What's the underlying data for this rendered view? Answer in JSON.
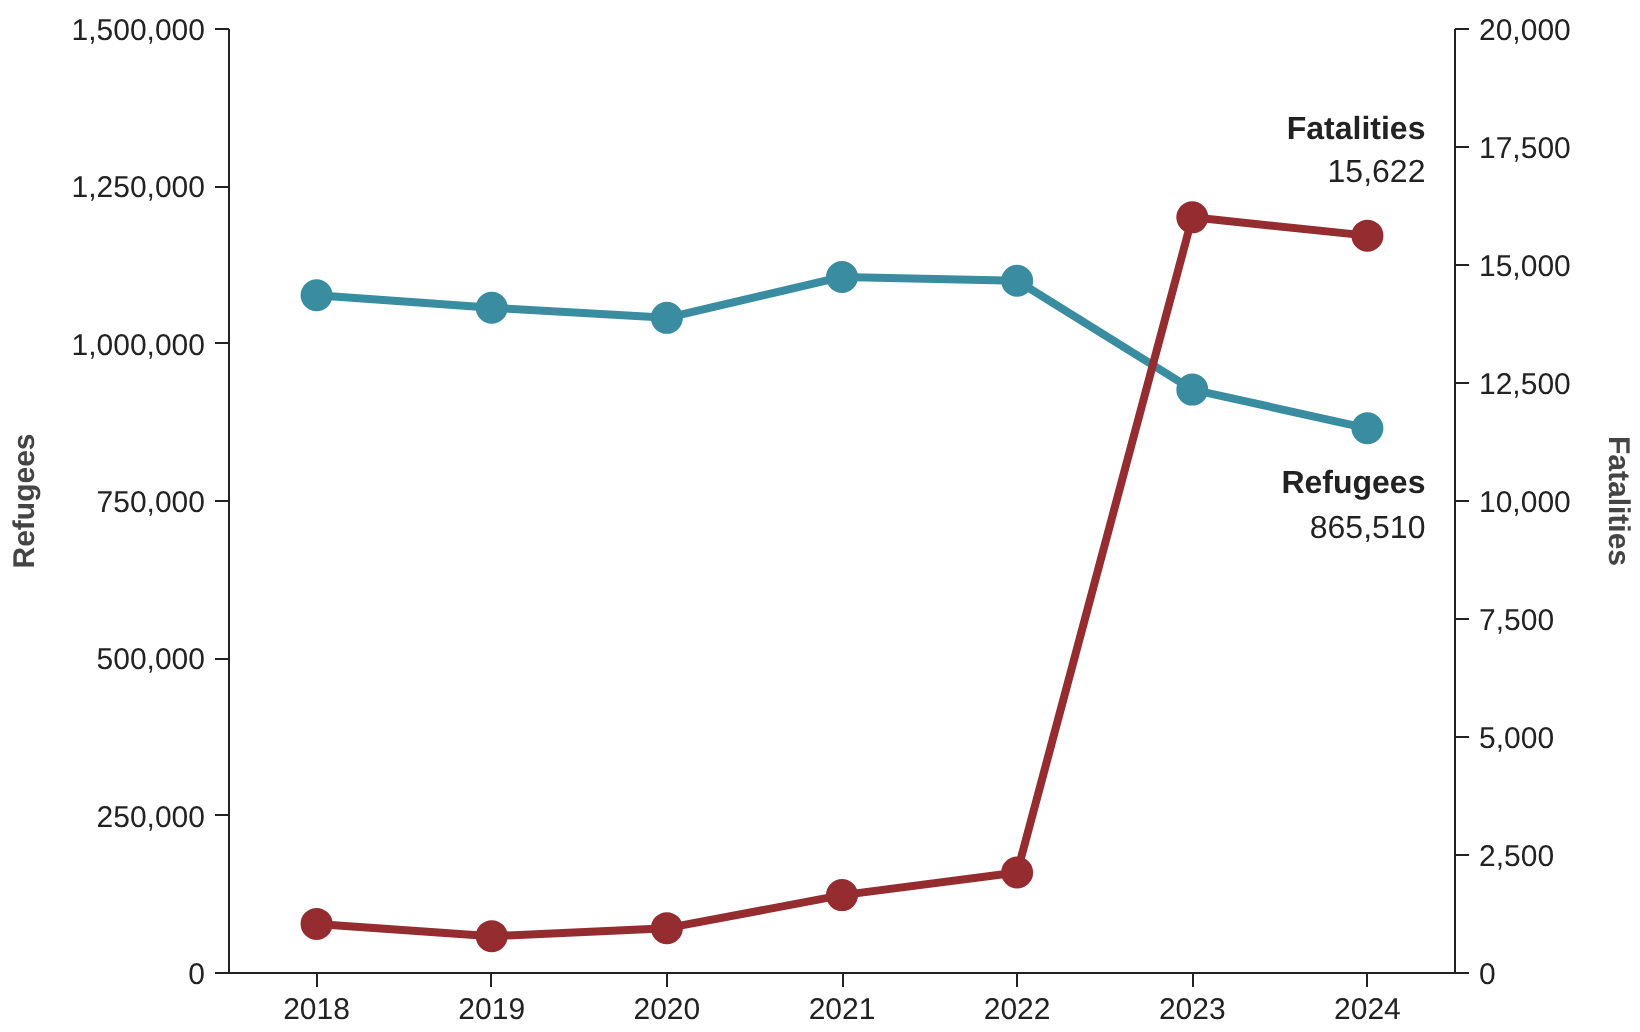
{
  "chart_data": {
    "type": "line",
    "categories": [
      "2018",
      "2019",
      "2020",
      "2021",
      "2022",
      "2023",
      "2024"
    ],
    "ylabel": "Refugees",
    "y2label": "Fatalities",
    "series": [
      {
        "name": "Refugees",
        "color": "#3a8ca0",
        "values": [
          1077000,
          1057000,
          1041000,
          1106000,
          1100000,
          927000,
          865510
        ],
        "value_labels": [
          null,
          null,
          null,
          null,
          null,
          null,
          "865,510"
        ]
      },
      {
        "name": "Fatalities",
        "color": "#952c30",
        "axis": "y2",
        "values": [
          1040,
          780,
          950,
          1650,
          2130,
          16010,
          15622
        ],
        "value_labels": [
          null,
          null,
          null,
          null,
          null,
          null,
          "15,622"
        ]
      }
    ],
    "ylim": [
      0,
      1500000
    ],
    "yticks": [
      {
        "value": 0,
        "label": "0"
      },
      {
        "value": 250000,
        "label": "250,000"
      },
      {
        "value": 500000,
        "label": "500,000"
      },
      {
        "value": 750000,
        "label": "750,000"
      },
      {
        "value": 1000000,
        "label": "1,000,000"
      },
      {
        "value": 1250000,
        "label": "1,250,000"
      },
      {
        "value": 1500000,
        "label": "1,500,000"
      }
    ],
    "y2lim": [
      0,
      20000
    ],
    "y2ticks": [
      {
        "value": 0,
        "label": "0"
      },
      {
        "value": 2500,
        "label": "2,500"
      },
      {
        "value": 5000,
        "label": "5,000"
      },
      {
        "value": 7500,
        "label": "7,500"
      },
      {
        "value": 10000,
        "label": "10,000"
      },
      {
        "value": 12500,
        "label": "12,500"
      },
      {
        "value": 15000,
        "label": "15,000"
      },
      {
        "value": 17500,
        "label": "17,500"
      },
      {
        "value": 20000,
        "label": "20,000"
      }
    ],
    "grid": false,
    "marker": "circle",
    "line_style": "solid"
  }
}
